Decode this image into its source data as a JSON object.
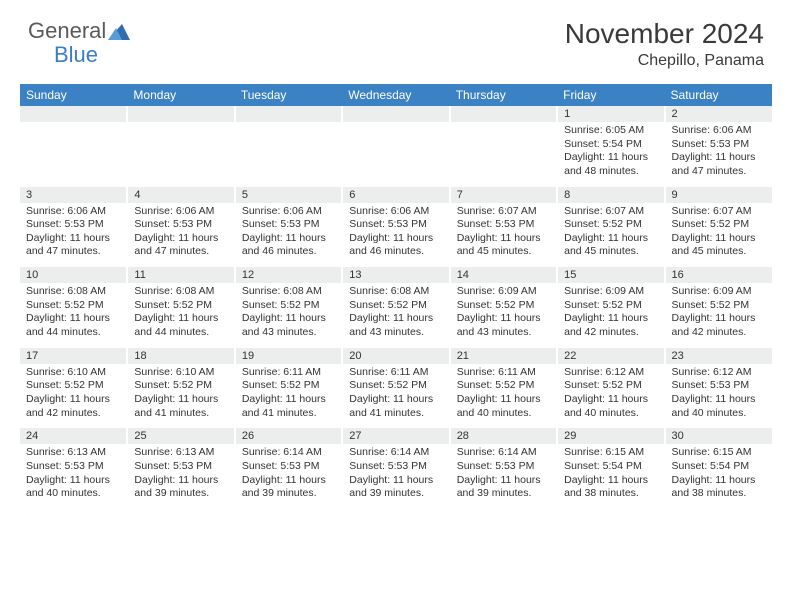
{
  "logo": {
    "text_general": "General",
    "text_blue": "Blue"
  },
  "title": {
    "month_year": "November 2024",
    "location": "Chepillo, Panama"
  },
  "header_bg": "#3b82c4",
  "header_text_color": "#ffffff",
  "daynum_bg": "#eceded",
  "text_color": "#333333",
  "logo_gray": "#5a5a5a",
  "logo_blue": "#3b7fc4",
  "weekdays": [
    "Sunday",
    "Monday",
    "Tuesday",
    "Wednesday",
    "Thursday",
    "Friday",
    "Saturday"
  ],
  "weeks": [
    [
      {
        "n": "",
        "s": ""
      },
      {
        "n": "",
        "s": ""
      },
      {
        "n": "",
        "s": ""
      },
      {
        "n": "",
        "s": ""
      },
      {
        "n": "",
        "s": ""
      },
      {
        "n": "1",
        "s": "Sunrise: 6:05 AM\nSunset: 5:54 PM\nDaylight: 11 hours and 48 minutes."
      },
      {
        "n": "2",
        "s": "Sunrise: 6:06 AM\nSunset: 5:53 PM\nDaylight: 11 hours and 47 minutes."
      }
    ],
    [
      {
        "n": "3",
        "s": "Sunrise: 6:06 AM\nSunset: 5:53 PM\nDaylight: 11 hours and 47 minutes."
      },
      {
        "n": "4",
        "s": "Sunrise: 6:06 AM\nSunset: 5:53 PM\nDaylight: 11 hours and 47 minutes."
      },
      {
        "n": "5",
        "s": "Sunrise: 6:06 AM\nSunset: 5:53 PM\nDaylight: 11 hours and 46 minutes."
      },
      {
        "n": "6",
        "s": "Sunrise: 6:06 AM\nSunset: 5:53 PM\nDaylight: 11 hours and 46 minutes."
      },
      {
        "n": "7",
        "s": "Sunrise: 6:07 AM\nSunset: 5:53 PM\nDaylight: 11 hours and 45 minutes."
      },
      {
        "n": "8",
        "s": "Sunrise: 6:07 AM\nSunset: 5:52 PM\nDaylight: 11 hours and 45 minutes."
      },
      {
        "n": "9",
        "s": "Sunrise: 6:07 AM\nSunset: 5:52 PM\nDaylight: 11 hours and 45 minutes."
      }
    ],
    [
      {
        "n": "10",
        "s": "Sunrise: 6:08 AM\nSunset: 5:52 PM\nDaylight: 11 hours and 44 minutes."
      },
      {
        "n": "11",
        "s": "Sunrise: 6:08 AM\nSunset: 5:52 PM\nDaylight: 11 hours and 44 minutes."
      },
      {
        "n": "12",
        "s": "Sunrise: 6:08 AM\nSunset: 5:52 PM\nDaylight: 11 hours and 43 minutes."
      },
      {
        "n": "13",
        "s": "Sunrise: 6:08 AM\nSunset: 5:52 PM\nDaylight: 11 hours and 43 minutes."
      },
      {
        "n": "14",
        "s": "Sunrise: 6:09 AM\nSunset: 5:52 PM\nDaylight: 11 hours and 43 minutes."
      },
      {
        "n": "15",
        "s": "Sunrise: 6:09 AM\nSunset: 5:52 PM\nDaylight: 11 hours and 42 minutes."
      },
      {
        "n": "16",
        "s": "Sunrise: 6:09 AM\nSunset: 5:52 PM\nDaylight: 11 hours and 42 minutes."
      }
    ],
    [
      {
        "n": "17",
        "s": "Sunrise: 6:10 AM\nSunset: 5:52 PM\nDaylight: 11 hours and 42 minutes."
      },
      {
        "n": "18",
        "s": "Sunrise: 6:10 AM\nSunset: 5:52 PM\nDaylight: 11 hours and 41 minutes."
      },
      {
        "n": "19",
        "s": "Sunrise: 6:11 AM\nSunset: 5:52 PM\nDaylight: 11 hours and 41 minutes."
      },
      {
        "n": "20",
        "s": "Sunrise: 6:11 AM\nSunset: 5:52 PM\nDaylight: 11 hours and 41 minutes."
      },
      {
        "n": "21",
        "s": "Sunrise: 6:11 AM\nSunset: 5:52 PM\nDaylight: 11 hours and 40 minutes."
      },
      {
        "n": "22",
        "s": "Sunrise: 6:12 AM\nSunset: 5:52 PM\nDaylight: 11 hours and 40 minutes."
      },
      {
        "n": "23",
        "s": "Sunrise: 6:12 AM\nSunset: 5:53 PM\nDaylight: 11 hours and 40 minutes."
      }
    ],
    [
      {
        "n": "24",
        "s": "Sunrise: 6:13 AM\nSunset: 5:53 PM\nDaylight: 11 hours and 40 minutes."
      },
      {
        "n": "25",
        "s": "Sunrise: 6:13 AM\nSunset: 5:53 PM\nDaylight: 11 hours and 39 minutes."
      },
      {
        "n": "26",
        "s": "Sunrise: 6:14 AM\nSunset: 5:53 PM\nDaylight: 11 hours and 39 minutes."
      },
      {
        "n": "27",
        "s": "Sunrise: 6:14 AM\nSunset: 5:53 PM\nDaylight: 11 hours and 39 minutes."
      },
      {
        "n": "28",
        "s": "Sunrise: 6:14 AM\nSunset: 5:53 PM\nDaylight: 11 hours and 39 minutes."
      },
      {
        "n": "29",
        "s": "Sunrise: 6:15 AM\nSunset: 5:54 PM\nDaylight: 11 hours and 38 minutes."
      },
      {
        "n": "30",
        "s": "Sunrise: 6:15 AM\nSunset: 5:54 PM\nDaylight: 11 hours and 38 minutes."
      }
    ]
  ]
}
